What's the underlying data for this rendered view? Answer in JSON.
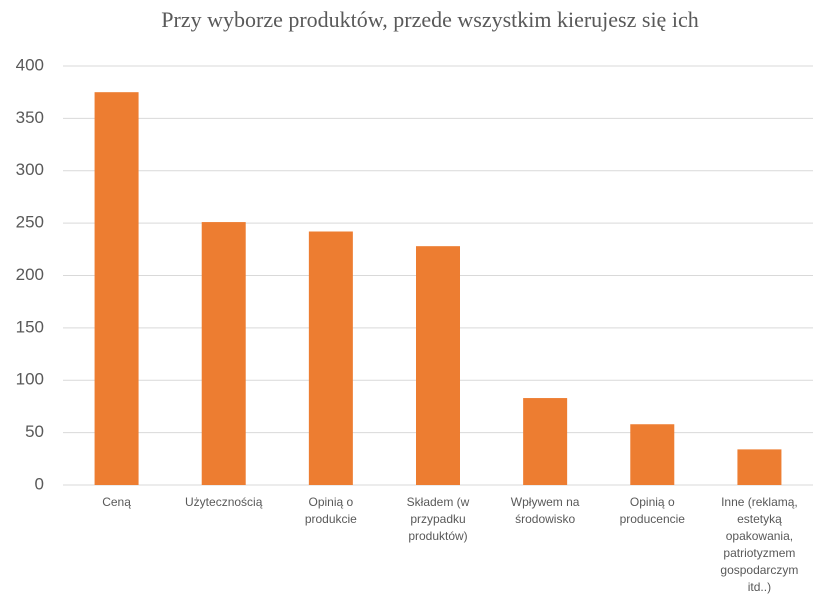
{
  "chart_data": {
    "type": "bar",
    "title": "Przy wyborze produktów, przede wszystkim kierujesz się ich",
    "categories": [
      "Ceną",
      "Użytecznością",
      "Opinią o\nprodukcie",
      "Składem (w\nprzypadku\nproduktów)",
      "Wpływem na\nśrodowisko",
      "Opinią o\nproducencie",
      "Inne (reklamą,\nestetyką\nopakowania,\npatriotyzmem\ngospodarczym\nitd..)"
    ],
    "values": [
      375,
      251,
      242,
      228,
      83,
      58,
      34
    ],
    "color": "#ed7d31",
    "ylim": [
      0,
      400
    ],
    "yticks": [
      0,
      50,
      100,
      150,
      200,
      250,
      300,
      350,
      400
    ],
    "grid": true
  }
}
